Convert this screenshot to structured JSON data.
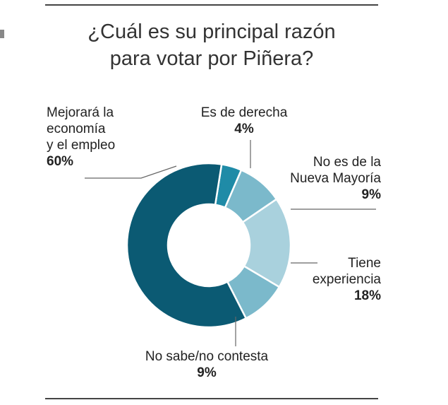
{
  "chart_data": {
    "type": "pie",
    "donut": true,
    "title_lines": [
      "¿Cuál es su principal razón",
      "para votar por Piñera?"
    ],
    "slices": [
      {
        "label_lines": [
          "Es de derecha"
        ],
        "value": 4,
        "pct_label": "4%",
        "color": "#1f8ba7"
      },
      {
        "label_lines": [
          "No es de la",
          "Nueva Mayoría"
        ],
        "value": 9,
        "pct_label": "9%",
        "color": "#7bb9cb"
      },
      {
        "label_lines": [
          "Tiene",
          "experiencia"
        ],
        "value": 18,
        "pct_label": "18%",
        "color": "#a9d1dd"
      },
      {
        "label_lines": [
          "No sabe/no contesta"
        ],
        "value": 9,
        "pct_label": "9%",
        "color": "#7bb9cb"
      },
      {
        "label_lines": [
          "Mejorará la",
          "economía",
          "y el empleo"
        ],
        "value": 60,
        "pct_label": "60%",
        "color": "#0b5a73"
      }
    ]
  }
}
